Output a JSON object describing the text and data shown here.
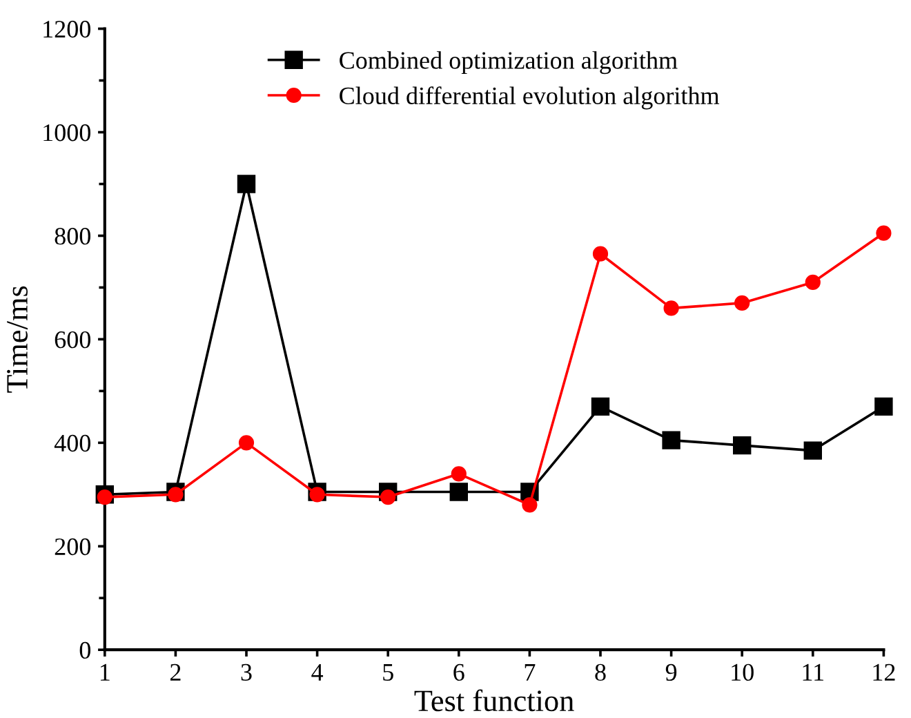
{
  "chart_data": {
    "type": "line",
    "xlabel": "Test function",
    "ylabel": "Time/ms",
    "x": [
      1,
      2,
      3,
      4,
      5,
      6,
      7,
      8,
      9,
      10,
      11,
      12
    ],
    "xlim": [
      1,
      12
    ],
    "xticks": [
      1,
      2,
      3,
      4,
      5,
      6,
      7,
      8,
      9,
      10,
      11,
      12
    ],
    "ylim": [
      0,
      1200
    ],
    "yticks": [
      0,
      200,
      400,
      600,
      800,
      1000,
      1200
    ],
    "grid": false,
    "legend": "top",
    "series": [
      {
        "name": "Combined optimization algorithm",
        "color": "#000000",
        "marker": "square",
        "values": [
          300,
          305,
          900,
          305,
          305,
          305,
          305,
          470,
          405,
          395,
          385,
          470
        ]
      },
      {
        "name": "Cloud differential evolution algorithm",
        "color": "#ff0000",
        "marker": "circle",
        "values": [
          295,
          300,
          400,
          300,
          295,
          340,
          280,
          765,
          660,
          670,
          710,
          805
        ]
      }
    ]
  }
}
